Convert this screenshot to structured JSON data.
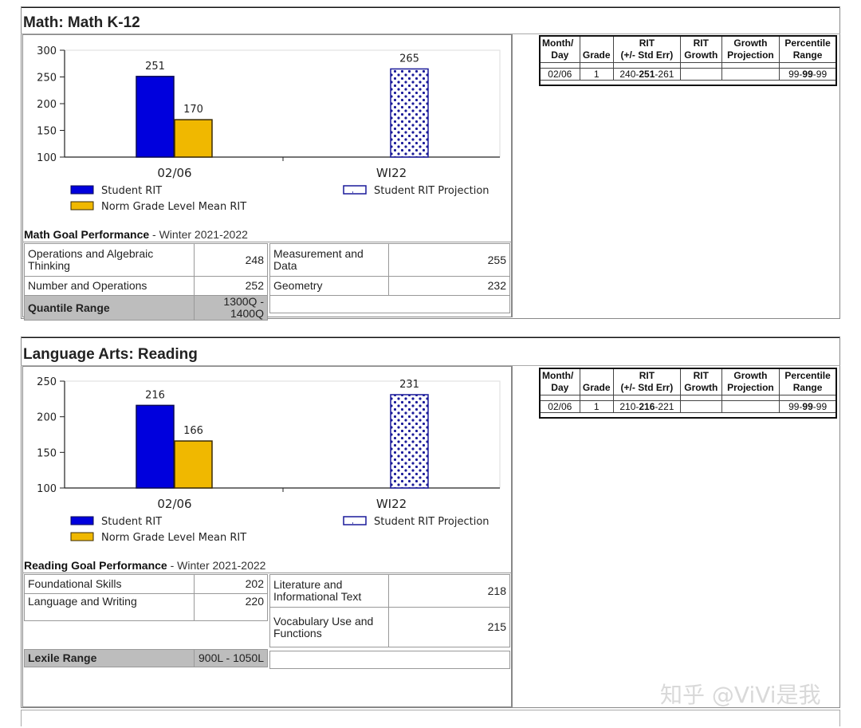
{
  "math": {
    "title": "Math: Math K-12",
    "chart_data": {
      "type": "bar",
      "categories": [
        "02/06",
        "WI22"
      ],
      "series": [
        {
          "name": "Student RIT",
          "values": [
            251,
            null
          ],
          "color": "#0000dd"
        },
        {
          "name": "Norm Grade Level Mean RIT",
          "values": [
            170,
            null
          ],
          "color": "#f0b800"
        },
        {
          "name": "Student RIT Projection",
          "values": [
            null,
            265
          ],
          "color": "#1a1a9a"
        }
      ],
      "yticks": [
        "300",
        "250",
        "200",
        "150",
        "100"
      ],
      "ylim": [
        100,
        300
      ],
      "legend_position": "bottom"
    },
    "goal_header_bold": "Math Goal Performance",
    "goal_header_rest": " - Winter 2021-2022",
    "goals": [
      {
        "name": "Operations and Algebraic Thinking",
        "score": "248"
      },
      {
        "name": "Measurement and Data",
        "score": "255"
      },
      {
        "name": "Number and Operations",
        "score": "252"
      },
      {
        "name": "Geometry",
        "score": "232"
      }
    ],
    "range_label": "Quantile Range",
    "range_value": "1300Q - 1400Q",
    "table": {
      "headers": [
        [
          "Month/",
          "Day"
        ],
        [
          "",
          "Grade"
        ],
        [
          "RIT",
          "(+/- Std Err)"
        ],
        [
          "RIT",
          "Growth"
        ],
        [
          "Growth",
          "Projection"
        ],
        [
          "Percentile",
          "Range"
        ]
      ],
      "row": {
        "day": "02/06",
        "grade": "1",
        "rit_low": "240-",
        "rit": "251",
        "rit_high": "-261",
        "growth": "",
        "projection": "",
        "pct_low": "99-",
        "pct": "99",
        "pct_high": "-99"
      }
    }
  },
  "reading": {
    "title": "Language Arts: Reading",
    "chart_data": {
      "type": "bar",
      "categories": [
        "02/06",
        "WI22"
      ],
      "series": [
        {
          "name": "Student RIT",
          "values": [
            216,
            null
          ],
          "color": "#0000dd"
        },
        {
          "name": "Norm Grade Level Mean RIT",
          "values": [
            166,
            null
          ],
          "color": "#f0b800"
        },
        {
          "name": "Student RIT Projection",
          "values": [
            null,
            231
          ],
          "color": "#1a1a9a"
        }
      ],
      "yticks": [
        "250",
        "200",
        "150",
        "100"
      ],
      "ylim": [
        100,
        250
      ],
      "legend_position": "bottom"
    },
    "goal_header_bold": "Reading Goal Performance",
    "goal_header_rest": " - Winter 2021-2022",
    "goals": [
      {
        "name": "Foundational Skills",
        "score": "202"
      },
      {
        "name": "Language and Writing",
        "score": "220"
      },
      {
        "name": "Literature and Informational Text",
        "score": "218"
      },
      {
        "name": "Vocabulary Use and Functions",
        "score": "215"
      }
    ],
    "range_label": "Lexile Range",
    "range_value": "900L - 1050L",
    "table": {
      "headers": [
        [
          "Month/",
          "Day"
        ],
        [
          "",
          "Grade"
        ],
        [
          "RIT",
          "(+/- Std Err)"
        ],
        [
          "RIT",
          "Growth"
        ],
        [
          "Growth",
          "Projection"
        ],
        [
          "Percentile",
          "Range"
        ]
      ],
      "row": {
        "day": "02/06",
        "grade": "1",
        "rit_low": "210-",
        "rit": "216",
        "rit_high": "-221",
        "growth": "",
        "projection": "",
        "pct_low": "99-",
        "pct": "99",
        "pct_high": "-99"
      }
    }
  },
  "watermark": "知乎 @ViVi是我"
}
